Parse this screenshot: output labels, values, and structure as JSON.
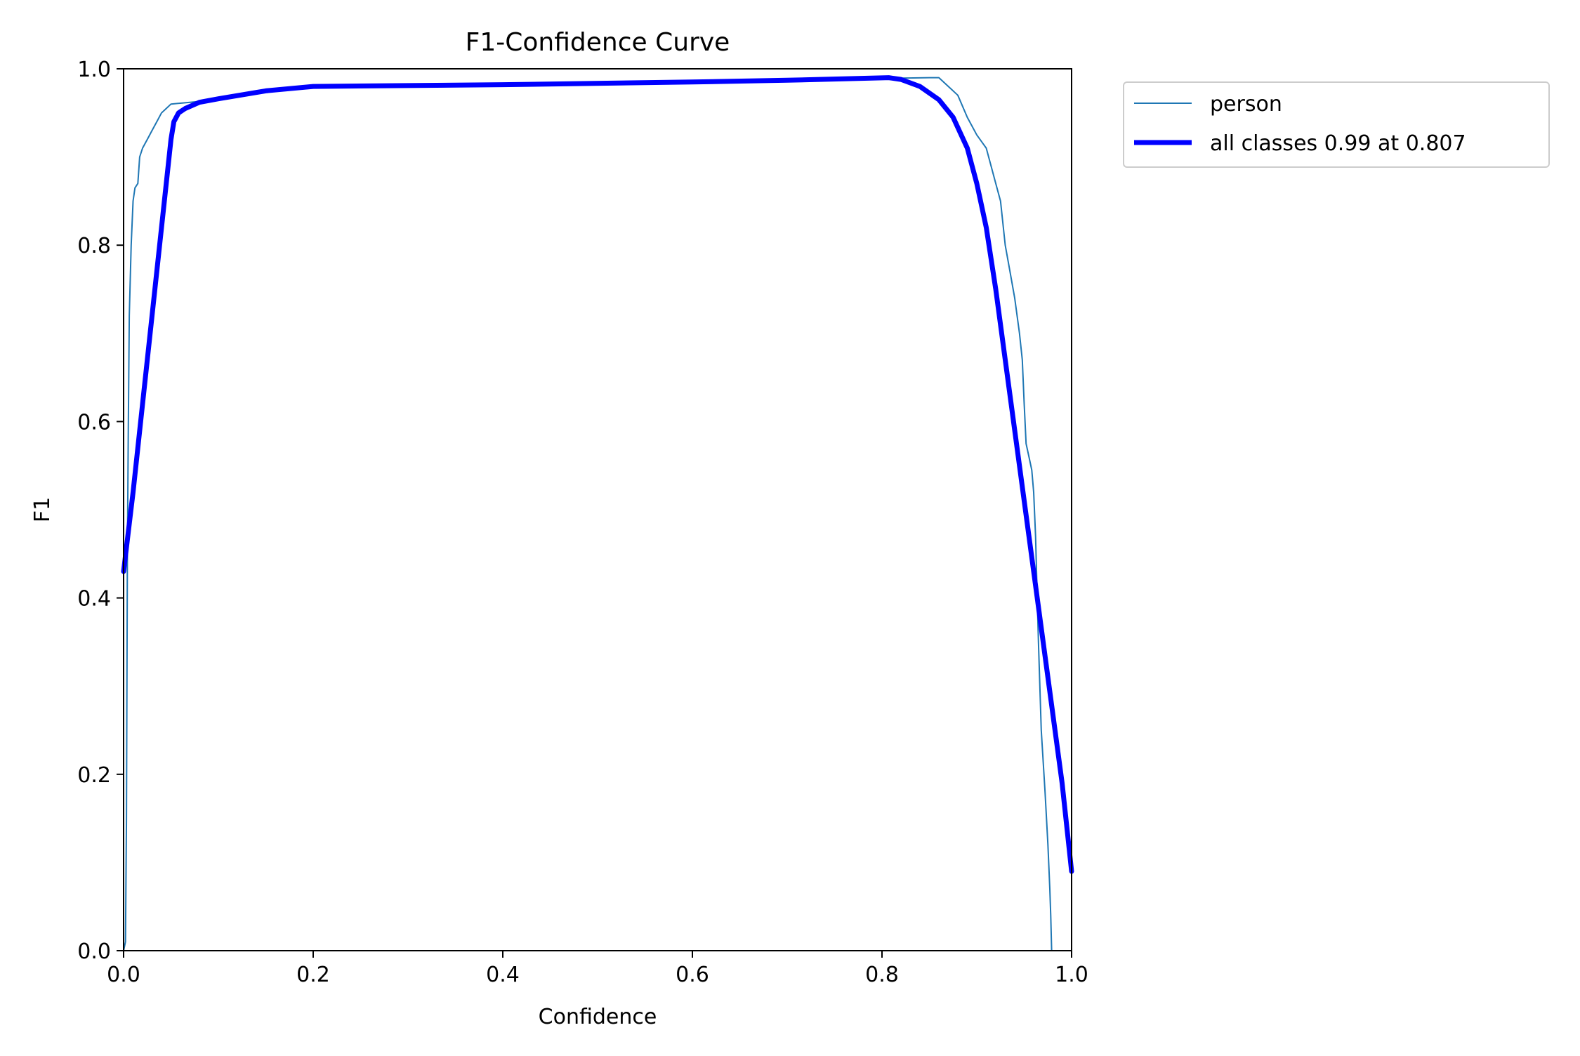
{
  "chart_data": {
    "type": "line",
    "title": "F1-Confidence Curve",
    "xlabel": "Confidence",
    "ylabel": "F1",
    "xlim": [
      0.0,
      1.0
    ],
    "ylim": [
      0.0,
      1.0
    ],
    "x_ticks": [
      "0.0",
      "0.2",
      "0.4",
      "0.6",
      "0.8",
      "1.0"
    ],
    "y_ticks": [
      "0.0",
      "0.2",
      "0.4",
      "0.6",
      "0.8",
      "1.0"
    ],
    "grid": false,
    "legend_position": "outside-top-right",
    "series": [
      {
        "name": "person",
        "color": "#1f77b4",
        "style": "thin",
        "points": [
          [
            0.0,
            0.0
          ],
          [
            0.002,
            0.01
          ],
          [
            0.003,
            0.15
          ],
          [
            0.004,
            0.45
          ],
          [
            0.005,
            0.6
          ],
          [
            0.006,
            0.72
          ],
          [
            0.008,
            0.8
          ],
          [
            0.01,
            0.85
          ],
          [
            0.012,
            0.865
          ],
          [
            0.015,
            0.87
          ],
          [
            0.017,
            0.9
          ],
          [
            0.02,
            0.91
          ],
          [
            0.025,
            0.92
          ],
          [
            0.03,
            0.93
          ],
          [
            0.035,
            0.94
          ],
          [
            0.04,
            0.95
          ],
          [
            0.045,
            0.955
          ],
          [
            0.05,
            0.96
          ],
          [
            0.1,
            0.965
          ],
          [
            0.15,
            0.975
          ],
          [
            0.2,
            0.98
          ],
          [
            0.4,
            0.982
          ],
          [
            0.6,
            0.985
          ],
          [
            0.8,
            0.989
          ],
          [
            0.85,
            0.99
          ],
          [
            0.86,
            0.99
          ],
          [
            0.87,
            0.98
          ],
          [
            0.88,
            0.97
          ],
          [
            0.89,
            0.945
          ],
          [
            0.9,
            0.925
          ],
          [
            0.91,
            0.91
          ],
          [
            0.915,
            0.89
          ],
          [
            0.92,
            0.87
          ],
          [
            0.925,
            0.85
          ],
          [
            0.93,
            0.8
          ],
          [
            0.935,
            0.77
          ],
          [
            0.94,
            0.74
          ],
          [
            0.945,
            0.7
          ],
          [
            0.948,
            0.67
          ],
          [
            0.95,
            0.62
          ],
          [
            0.952,
            0.575
          ],
          [
            0.955,
            0.56
          ],
          [
            0.958,
            0.545
          ],
          [
            0.96,
            0.52
          ],
          [
            0.962,
            0.47
          ],
          [
            0.965,
            0.35
          ],
          [
            0.968,
            0.25
          ],
          [
            0.972,
            0.18
          ],
          [
            0.975,
            0.12
          ],
          [
            0.977,
            0.07
          ],
          [
            0.978,
            0.04
          ],
          [
            0.979,
            0.0
          ],
          [
            1.0,
            0.0
          ]
        ]
      },
      {
        "name": "all classes 0.99 at 0.807",
        "color": "#0000ff",
        "style": "thick",
        "points": [
          [
            0.0,
            0.43
          ],
          [
            0.01,
            0.52
          ],
          [
            0.02,
            0.62
          ],
          [
            0.03,
            0.72
          ],
          [
            0.04,
            0.82
          ],
          [
            0.05,
            0.92
          ],
          [
            0.053,
            0.94
          ],
          [
            0.058,
            0.95
          ],
          [
            0.065,
            0.955
          ],
          [
            0.08,
            0.962
          ],
          [
            0.1,
            0.966
          ],
          [
            0.15,
            0.975
          ],
          [
            0.2,
            0.98
          ],
          [
            0.4,
            0.982
          ],
          [
            0.6,
            0.985
          ],
          [
            0.7,
            0.987
          ],
          [
            0.807,
            0.99
          ],
          [
            0.82,
            0.988
          ],
          [
            0.84,
            0.98
          ],
          [
            0.86,
            0.965
          ],
          [
            0.875,
            0.945
          ],
          [
            0.89,
            0.91
          ],
          [
            0.9,
            0.87
          ],
          [
            0.91,
            0.82
          ],
          [
            0.92,
            0.75
          ],
          [
            0.93,
            0.67
          ],
          [
            0.94,
            0.59
          ],
          [
            0.95,
            0.51
          ],
          [
            0.96,
            0.43
          ],
          [
            0.97,
            0.35
          ],
          [
            0.98,
            0.27
          ],
          [
            0.99,
            0.19
          ],
          [
            1.0,
            0.09
          ]
        ]
      }
    ]
  }
}
